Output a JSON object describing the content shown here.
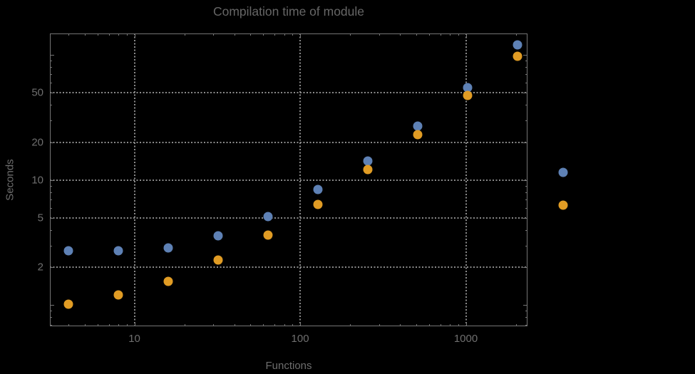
{
  "title": "Compilation time of module",
  "colors": {
    "background": "#000000",
    "frame": "#757575",
    "grid": "#8a8a8a",
    "text": "#6f6f6f",
    "title_text": "#666666",
    "series_blue": "#5e81b5",
    "series_orange": "#e19c24"
  },
  "chart_data": {
    "type": "scatter",
    "title": "Compilation time of module",
    "xlabel": "Functions",
    "ylabel": "Seconds",
    "x_scale": "log",
    "y_scale": "log",
    "grid": "dotted gridlines at labeled major ticks only",
    "legend_position": "right of plot frame, markers only (no visible label text)",
    "xlim": [
      3.09,
      2355
    ],
    "ylim": [
      0.683,
      148
    ],
    "x": [
      4,
      8,
      16,
      32,
      64,
      128,
      256,
      512,
      1024,
      2048
    ],
    "series": [
      {
        "name": "series-1-blue",
        "color": "#5e81b5",
        "values": [
          2.72,
          2.72,
          2.88,
          3.58,
          5.1,
          8.4,
          14.2,
          27,
          54.7,
          120
        ]
      },
      {
        "name": "series-2-orange",
        "color": "#e19c24",
        "values": [
          1.02,
          1.2,
          1.55,
          2.28,
          3.63,
          6.4,
          12.1,
          23,
          47.4,
          97.4
        ]
      }
    ],
    "x_ticks_labeled": [
      10,
      100,
      1000
    ],
    "x_ticks_minor": [
      4,
      5,
      6,
      7,
      8,
      9,
      20,
      30,
      40,
      50,
      60,
      70,
      80,
      90,
      200,
      300,
      400,
      500,
      600,
      700,
      800,
      900,
      2000
    ],
    "y_ticks_labeled": [
      2,
      5,
      10,
      20,
      50
    ],
    "y_ticks_major_unlabeled": [
      1,
      100
    ],
    "y_ticks_minor": [
      0.7,
      0.8,
      0.9,
      3,
      4,
      6,
      7,
      8,
      9,
      30,
      40,
      60,
      70,
      80,
      90
    ]
  },
  "legend": {
    "markers": [
      {
        "name": "legend-marker-series1",
        "color": "#5e81b5",
        "label": ""
      },
      {
        "name": "legend-marker-series2",
        "color": "#e19c24",
        "label": ""
      }
    ]
  }
}
